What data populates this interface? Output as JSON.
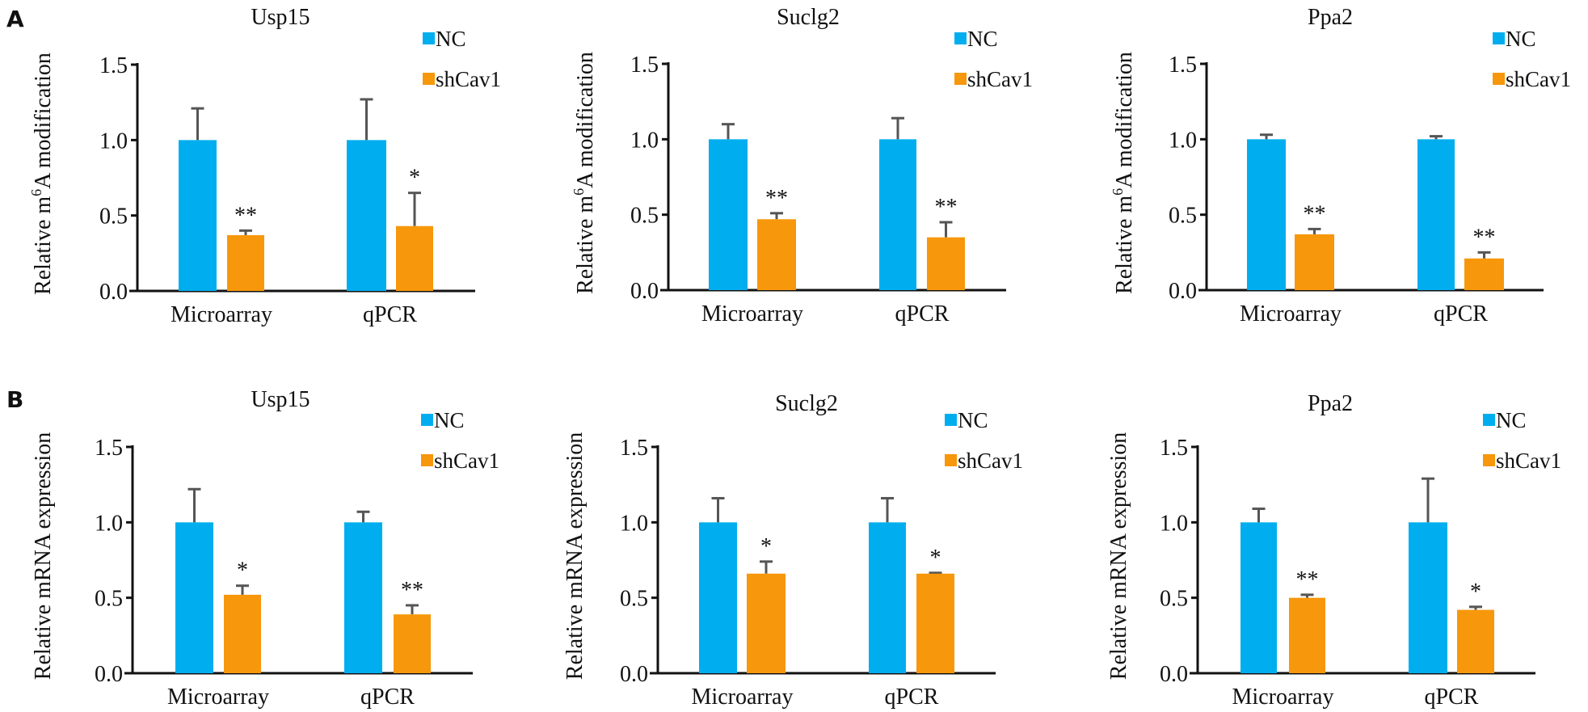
{
  "figure": {
    "panels": [
      {
        "letter": "A",
        "ylabel_prefix": "Relative m",
        "ylabel_sup": "6",
        "ylabel_suffix": "A modification"
      },
      {
        "letter": "B",
        "ylabel_prefix": "Relative mRNA expression",
        "ylabel_sup": "",
        "ylabel_suffix": ""
      }
    ],
    "colors": {
      "NC": "#00AEEF",
      "shCav1": "#F7970B",
      "error": "#555555",
      "axis": "#111111"
    }
  },
  "chart_data": [
    {
      "type": "bar",
      "panel": "A",
      "title": "Usp15",
      "ylabel": "Relative m6A modification",
      "xlabel": "",
      "ylim": [
        0,
        1.5
      ],
      "yticks": [
        "0.0",
        "0.5",
        "1.0",
        "1.5"
      ],
      "categories": [
        "Microarray",
        "qPCR"
      ],
      "legend": {
        "placement": "top-right",
        "entries": [
          "NC",
          "shCav1"
        ]
      },
      "series": [
        {
          "name": "NC",
          "values": [
            1.0,
            1.0
          ],
          "errors": [
            0.21,
            0.27
          ]
        },
        {
          "name": "shCav1",
          "values": [
            0.37,
            0.43
          ],
          "errors": [
            0.03,
            0.22
          ]
        }
      ],
      "significance": [
        {
          "category": "Microarray",
          "series": "shCav1",
          "label": "**"
        },
        {
          "category": "qPCR",
          "series": "shCav1",
          "label": "*"
        }
      ]
    },
    {
      "type": "bar",
      "panel": "A",
      "title": "Suclg2",
      "ylabel": "Relative m6A modification",
      "xlabel": "",
      "ylim": [
        0,
        1.5
      ],
      "yticks": [
        "0.0",
        "0.5",
        "1.0",
        "1.5"
      ],
      "categories": [
        "Microarray",
        "qPCR"
      ],
      "legend": {
        "placement": "top-right",
        "entries": [
          "NC",
          "shCav1"
        ]
      },
      "series": [
        {
          "name": "NC",
          "values": [
            1.0,
            1.0
          ],
          "errors": [
            0.1,
            0.14
          ]
        },
        {
          "name": "shCav1",
          "values": [
            0.47,
            0.35
          ],
          "errors": [
            0.04,
            0.1
          ]
        }
      ],
      "significance": [
        {
          "category": "Microarray",
          "series": "shCav1",
          "label": "**"
        },
        {
          "category": "qPCR",
          "series": "shCav1",
          "label": "**"
        }
      ]
    },
    {
      "type": "bar",
      "panel": "A",
      "title": "Ppa2",
      "ylabel": "Relative m6A modification",
      "xlabel": "",
      "ylim": [
        0,
        1.5
      ],
      "yticks": [
        "0.0",
        "0.5",
        "1.0",
        "1.5"
      ],
      "categories": [
        "Microarray",
        "qPCR"
      ],
      "legend": {
        "placement": "top-right",
        "entries": [
          "NC",
          "shCav1"
        ]
      },
      "series": [
        {
          "name": "NC",
          "values": [
            1.0,
            1.0
          ],
          "errors": [
            0.03,
            0.02
          ]
        },
        {
          "name": "shCav1",
          "values": [
            0.37,
            0.21
          ],
          "errors": [
            0.035,
            0.04
          ]
        }
      ],
      "significance": [
        {
          "category": "Microarray",
          "series": "shCav1",
          "label": "**"
        },
        {
          "category": "qPCR",
          "series": "shCav1",
          "label": "**"
        }
      ]
    },
    {
      "type": "bar",
      "panel": "B",
      "title": "Usp15",
      "ylabel": "Relative mRNA expression",
      "xlabel": "",
      "ylim": [
        0,
        1.5
      ],
      "yticks": [
        "0.0",
        "0.5",
        "1.0",
        "1.5"
      ],
      "categories": [
        "Microarray",
        "qPCR"
      ],
      "legend": {
        "placement": "top-right",
        "entries": [
          "NC",
          "shCav1"
        ]
      },
      "series": [
        {
          "name": "NC",
          "values": [
            1.0,
            1.0
          ],
          "errors": [
            0.22,
            0.07
          ]
        },
        {
          "name": "shCav1",
          "values": [
            0.52,
            0.39
          ],
          "errors": [
            0.06,
            0.06
          ]
        }
      ],
      "significance": [
        {
          "category": "Microarray",
          "series": "shCav1",
          "label": "*"
        },
        {
          "category": "qPCR",
          "series": "shCav1",
          "label": "**"
        }
      ]
    },
    {
      "type": "bar",
      "panel": "B",
      "title": "Suclg2",
      "ylabel": "Relative mRNA expression",
      "xlabel": "",
      "ylim": [
        0,
        1.5
      ],
      "yticks": [
        "0.0",
        "0.5",
        "1.0",
        "1.5"
      ],
      "categories": [
        "Microarray",
        "qPCR"
      ],
      "legend": {
        "placement": "top-right",
        "entries": [
          "NC",
          "shCav1"
        ]
      },
      "series": [
        {
          "name": "NC",
          "values": [
            1.0,
            1.0
          ],
          "errors": [
            0.16,
            0.16
          ]
        },
        {
          "name": "shCav1",
          "values": [
            0.66,
            0.66
          ],
          "errors": [
            0.08,
            0.005
          ]
        }
      ],
      "significance": [
        {
          "category": "Microarray",
          "series": "shCav1",
          "label": "*"
        },
        {
          "category": "qPCR",
          "series": "shCav1",
          "label": "*"
        }
      ]
    },
    {
      "type": "bar",
      "panel": "B",
      "title": "Ppa2",
      "ylabel": "Relative mRNA expression",
      "xlabel": "",
      "ylim": [
        0,
        1.5
      ],
      "yticks": [
        "0.0",
        "0.5",
        "1.0",
        "1.5"
      ],
      "categories": [
        "Microarray",
        "qPCR"
      ],
      "legend": {
        "placement": "top-right",
        "entries": [
          "NC",
          "shCav1"
        ]
      },
      "series": [
        {
          "name": "NC",
          "values": [
            1.0,
            1.0
          ],
          "errors": [
            0.09,
            0.29
          ]
        },
        {
          "name": "shCav1",
          "values": [
            0.5,
            0.42
          ],
          "errors": [
            0.02,
            0.02
          ]
        }
      ],
      "significance": [
        {
          "category": "Microarray",
          "series": "shCav1",
          "label": "**"
        },
        {
          "category": "qPCR",
          "series": "shCav1",
          "label": "*"
        }
      ]
    }
  ]
}
